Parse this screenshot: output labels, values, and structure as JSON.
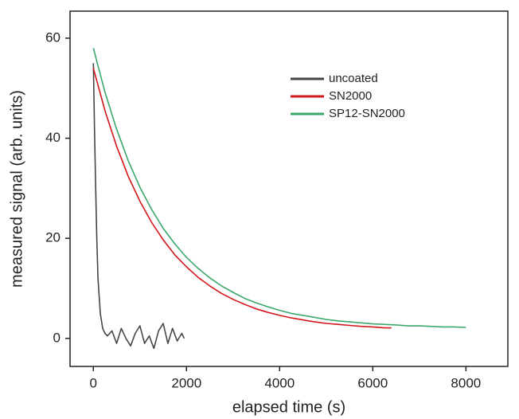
{
  "chart_data": {
    "type": "line",
    "xlabel": "elapsed time (s)",
    "ylabel": "measured signal (arb. units)",
    "xlim": [
      -500,
      8900
    ],
    "ylim": [
      -5.6,
      65.4
    ],
    "xticks": [
      0,
      2000,
      4000,
      6000,
      8000
    ],
    "yticks": [
      0,
      20,
      40,
      60
    ],
    "grid": false,
    "legend": "upper right",
    "series": [
      {
        "name": "uncoated",
        "color": "#454545",
        "x": [
          0,
          25,
          50,
          75,
          100,
          150,
          200,
          250,
          300,
          400,
          500,
          600,
          700,
          800,
          900,
          1000,
          1100,
          1200,
          1300,
          1400,
          1500,
          1600,
          1700,
          1800,
          1900,
          1950
        ],
        "values": [
          55,
          42,
          30,
          20,
          12,
          5,
          2,
          1,
          0.5,
          1.5,
          -1,
          2,
          0,
          -1.5,
          1,
          2.5,
          -1,
          0.5,
          -2,
          1.5,
          3,
          -1,
          2,
          -0.5,
          1,
          0
        ]
      },
      {
        "name": "SN2000",
        "color": "#d2161a",
        "x": [
          0,
          250,
          500,
          750,
          1000,
          1250,
          1500,
          1750,
          2000,
          2250,
          2500,
          2750,
          3000,
          3250,
          3500,
          3750,
          4000,
          4250,
          4500,
          4750,
          5000,
          5250,
          5500,
          5750,
          6000,
          6250,
          6400
        ],
        "values": [
          54,
          45.5,
          38.4,
          32.4,
          27.4,
          23.2,
          19.7,
          16.7,
          14.3,
          12.2,
          10.5,
          9.0,
          7.8,
          6.8,
          5.9,
          5.2,
          4.6,
          4.1,
          3.7,
          3.3,
          3.0,
          2.8,
          2.6,
          2.4,
          2.3,
          2.1,
          2.1
        ]
      },
      {
        "name": "SP12-SN2000",
        "color": "#3aa86b",
        "x": [
          0,
          250,
          500,
          750,
          1000,
          1250,
          1500,
          1750,
          2000,
          2250,
          2500,
          2750,
          3000,
          3250,
          3500,
          3750,
          4000,
          4250,
          4500,
          4750,
          5000,
          5250,
          5500,
          5750,
          6000,
          6250,
          6500,
          6750,
          7000,
          7250,
          7500,
          7750,
          8000
        ],
        "values": [
          58,
          49.2,
          41.8,
          35.5,
          30.2,
          25.8,
          22.0,
          18.9,
          16.2,
          14.0,
          12.1,
          10.5,
          9.2,
          8.0,
          7.1,
          6.3,
          5.6,
          5.0,
          4.6,
          4.2,
          3.8,
          3.5,
          3.3,
          3.1,
          2.9,
          2.8,
          2.7,
          2.5,
          2.5,
          2.4,
          2.3,
          2.3,
          2.2
        ]
      }
    ]
  }
}
